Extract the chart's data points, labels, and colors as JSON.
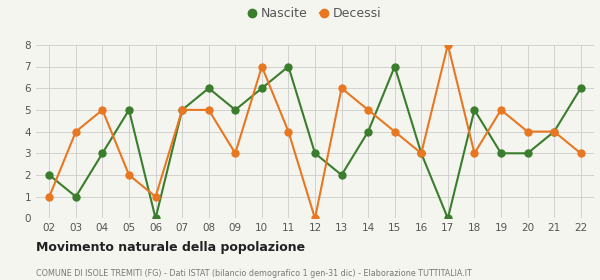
{
  "years": [
    "02",
    "03",
    "04",
    "05",
    "06",
    "07",
    "08",
    "09",
    "10",
    "11",
    "12",
    "13",
    "14",
    "15",
    "16",
    "17",
    "18",
    "19",
    "20",
    "21",
    "22"
  ],
  "nascite": [
    2,
    1,
    3,
    5,
    0,
    5,
    6,
    5,
    6,
    7,
    3,
    2,
    4,
    7,
    3,
    0,
    5,
    3,
    3,
    4,
    6
  ],
  "decessi": [
    1,
    4,
    5,
    2,
    1,
    5,
    5,
    3,
    7,
    4,
    0,
    6,
    5,
    4,
    3,
    8,
    3,
    5,
    4,
    4,
    3
  ],
  "nascite_color": "#3a7d2c",
  "decessi_color": "#e87722",
  "background_color": "#f5f5f0",
  "grid_color": "#cccccc",
  "ylim": [
    0,
    8
  ],
  "yticks": [
    0,
    1,
    2,
    3,
    4,
    5,
    6,
    7,
    8
  ],
  "title": "Movimento naturale della popolazione",
  "subtitle": "COMUNE DI ISOLE TREMITI (FG) - Dati ISTAT (bilancio demografico 1 gen-31 dic) - Elaborazione TUTTITALIA.IT",
  "legend_nascite": "Nascite",
  "legend_decessi": "Decessi",
  "marker_size": 5,
  "line_width": 1.5
}
